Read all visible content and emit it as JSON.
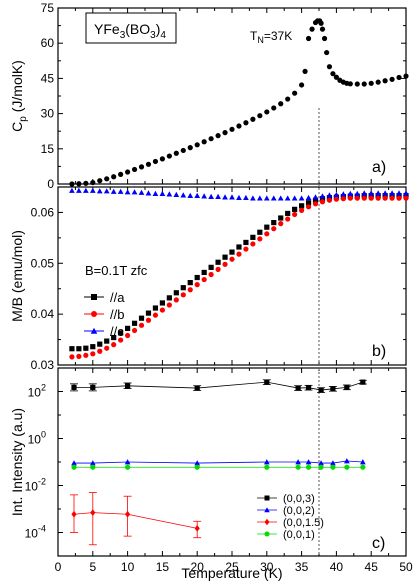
{
  "figure": {
    "xlabel": "Temperature (K)",
    "x_ticks": [
      "0",
      "5",
      "10",
      "15",
      "20",
      "25",
      "30",
      "35",
      "40",
      "45",
      "50"
    ],
    "xlim": [
      0,
      50
    ],
    "neel_line_x": 37.5
  },
  "chart_data": [
    {
      "type": "scatter",
      "panel_label": "a)",
      "ylabel": "Cp (J/molK)",
      "ylabel_main": "C",
      "ylabel_sub": "p",
      "ylabel_rest": " (J/molK)",
      "ylim": [
        0,
        75
      ],
      "y_ticks": [
        0,
        15,
        30,
        45,
        60,
        75
      ],
      "y_tick_labels": [
        "0",
        "15",
        "30",
        "45",
        "60",
        "75"
      ],
      "compound_box": {
        "main": "YFe",
        "sub1": "3",
        "mid": "(BO",
        "sub2": "3",
        "end": ")",
        "sub3": "4"
      },
      "annotation": {
        "main": "T",
        "sub": "N",
        "rest": "=37K"
      },
      "series": [
        {
          "color": "#000000",
          "marker": "circle",
          "x": [
            2.0,
            3.0,
            4.0,
            5.0,
            6.0,
            7.0,
            8.0,
            9.0,
            10.0,
            11.0,
            12.0,
            13.0,
            14.0,
            15.0,
            16.0,
            17.0,
            18.0,
            19.0,
            20.0,
            21.0,
            22.0,
            23.0,
            24.0,
            25.0,
            26.0,
            27.0,
            28.0,
            29.0,
            30.0,
            31.0,
            32.0,
            33.0,
            34.0,
            35.0,
            35.5,
            36.0,
            36.5,
            37.0,
            37.3,
            37.6,
            37.8,
            38.0,
            38.3,
            38.6,
            39.0,
            39.5,
            40.0,
            40.5,
            41.0,
            41.5,
            42.0,
            43.0,
            44.0,
            45.0,
            46.0,
            47.0,
            48.0,
            49.0,
            50.0
          ],
          "y": [
            0.0,
            0.1,
            0.3,
            0.6,
            1.4,
            2.2,
            3.1,
            4.1,
            5.1,
            6.2,
            7.3,
            8.4,
            9.6,
            10.7,
            11.9,
            13.1,
            14.3,
            15.5,
            16.7,
            18.0,
            19.3,
            20.6,
            21.9,
            23.3,
            24.7,
            26.1,
            27.6,
            29.1,
            30.7,
            32.4,
            34.2,
            36.2,
            38.7,
            42.2,
            48.0,
            62.0,
            66.0,
            68.8,
            69.5,
            69.5,
            68.5,
            66.0,
            62.0,
            56.0,
            50.0,
            47.0,
            45.5,
            44.2,
            43.4,
            42.9,
            42.7,
            42.6,
            42.6,
            42.9,
            43.4,
            44.0,
            44.6,
            45.4,
            46.0
          ]
        }
      ]
    },
    {
      "type": "scatter",
      "panel_label": "b)",
      "ylabel": "M/B (emu/mol)",
      "ylim": [
        0.03,
        0.065
      ],
      "y_ticks": [
        0.03,
        0.04,
        0.05,
        0.06
      ],
      "y_tick_labels": [
        "0.03",
        "0.04",
        "0.05",
        "0.06"
      ],
      "annotation": "B=0.1T zfc",
      "series": [
        {
          "name": "//a",
          "color": "#000000",
          "marker": "square",
          "x": [
            2,
            3,
            4,
            5,
            6,
            7,
            8,
            9,
            10,
            11,
            12,
            13,
            14,
            15,
            16,
            17,
            18,
            19,
            20,
            21,
            22,
            23,
            24,
            25,
            26,
            27,
            28,
            29,
            30,
            31,
            32,
            33,
            34,
            35,
            36,
            37,
            38,
            39,
            40,
            41,
            42,
            43,
            44,
            45,
            46,
            47,
            48,
            49,
            50
          ],
          "y": [
            0.0332,
            0.0332,
            0.0333,
            0.0336,
            0.0341,
            0.0347,
            0.0354,
            0.0363,
            0.0372,
            0.0382,
            0.0392,
            0.0402,
            0.0412,
            0.0422,
            0.0432,
            0.0442,
            0.0452,
            0.0462,
            0.0472,
            0.0482,
            0.0492,
            0.0502,
            0.0512,
            0.0522,
            0.0532,
            0.0541,
            0.0551,
            0.0561,
            0.0571,
            0.058,
            0.0589,
            0.0598,
            0.0606,
            0.0613,
            0.0619,
            0.0624,
            0.0627,
            0.0629,
            0.063,
            0.0631,
            0.0632,
            0.0632,
            0.0633,
            0.0633,
            0.0633,
            0.0633,
            0.0633,
            0.0633,
            0.0633
          ]
        },
        {
          "name": "//b",
          "color": "#ff0000",
          "marker": "circle",
          "x": [
            2,
            3,
            4,
            5,
            6,
            7,
            8,
            9,
            10,
            11,
            12,
            13,
            14,
            15,
            16,
            17,
            18,
            19,
            20,
            21,
            22,
            23,
            24,
            25,
            26,
            27,
            28,
            29,
            30,
            31,
            32,
            33,
            34,
            35,
            36,
            37,
            38,
            39,
            40,
            41,
            42,
            43,
            44,
            45,
            46,
            47,
            48,
            49,
            50
          ],
          "y": [
            0.0316,
            0.0317,
            0.0319,
            0.0322,
            0.0327,
            0.0333,
            0.034,
            0.0349,
            0.0358,
            0.0368,
            0.0378,
            0.0388,
            0.0398,
            0.0408,
            0.0418,
            0.0428,
            0.0438,
            0.0448,
            0.0458,
            0.0468,
            0.0478,
            0.0488,
            0.0498,
            0.0508,
            0.0518,
            0.0528,
            0.0538,
            0.0548,
            0.0558,
            0.0568,
            0.0578,
            0.0587,
            0.0596,
            0.0604,
            0.0611,
            0.0617,
            0.0621,
            0.0624,
            0.0626,
            0.0627,
            0.0628,
            0.0628,
            0.0628,
            0.0628,
            0.0628,
            0.0628,
            0.0628,
            0.0628,
            0.0628
          ]
        },
        {
          "name": "//c",
          "color": "#0000ff",
          "marker": "triangle",
          "x": [
            2,
            3,
            4,
            5,
            6,
            7,
            8,
            9,
            10,
            11,
            12,
            13,
            14,
            15,
            16,
            17,
            18,
            19,
            20,
            21,
            22,
            23,
            24,
            25,
            26,
            27,
            28,
            29,
            30,
            31,
            32,
            33,
            34,
            35,
            36,
            37,
            38,
            39,
            40,
            41,
            42,
            43,
            44,
            45,
            46,
            47,
            48,
            49,
            50
          ],
          "y": [
            0.0643,
            0.0643,
            0.0643,
            0.0643,
            0.0642,
            0.0642,
            0.0641,
            0.0641,
            0.064,
            0.064,
            0.0639,
            0.0638,
            0.0637,
            0.0637,
            0.0636,
            0.0635,
            0.0634,
            0.0633,
            0.0633,
            0.0632,
            0.0631,
            0.0631,
            0.063,
            0.063,
            0.0629,
            0.0629,
            0.0628,
            0.0628,
            0.0628,
            0.0628,
            0.0628,
            0.0628,
            0.0628,
            0.0628,
            0.0629,
            0.063,
            0.0632,
            0.0634,
            0.0635,
            0.0636,
            0.0637,
            0.0637,
            0.0638,
            0.0638,
            0.0638,
            0.0638,
            0.0638,
            0.0638,
            0.0638
          ]
        }
      ]
    },
    {
      "type": "line",
      "panel_label": "c)",
      "ylabel": "Int. Intensity (a.u)",
      "yscale": "log",
      "ylim": [
        1e-05,
        1000
      ],
      "y_ticks": [
        0.0001,
        0.01,
        1,
        100
      ],
      "y_tick_labels": [
        {
          "base": "10",
          "exp": "-4"
        },
        {
          "base": "10",
          "exp": "-2"
        },
        {
          "base": "10",
          "exp": "0"
        },
        {
          "base": "10",
          "exp": "2"
        }
      ],
      "series": [
        {
          "name": "(0,0,3)",
          "color": "#000000",
          "marker": "square",
          "x": [
            2.3,
            5,
            10,
            20,
            30,
            34.5,
            36,
            37.8,
            39.5,
            41.5,
            43.8
          ],
          "y": [
            150,
            150,
            175,
            140,
            250,
            140,
            145,
            115,
            130,
            150,
            250
          ],
          "yerr": [
            0.15,
            0.15,
            0.12,
            0.1,
            0.1,
            0.1,
            0.1,
            0.1,
            0.1,
            0.1,
            0.08
          ]
        },
        {
          "name": "(0,0,2)",
          "color": "#0000ff",
          "marker": "triangle",
          "x": [
            2.3,
            5,
            10,
            20,
            30,
            34.5,
            36,
            37.8,
            39.5,
            41.5,
            43.8
          ],
          "y": [
            0.09,
            0.09,
            0.1,
            0.09,
            0.1,
            0.1,
            0.1,
            0.09,
            0.09,
            0.11,
            0.1
          ]
        },
        {
          "name": "(0,0,1.5)",
          "color": "#ff0000",
          "marker": "diamond",
          "x": [
            2.3,
            5,
            10,
            20
          ],
          "y": [
            0.0006,
            0.0007,
            0.0006,
            0.00015
          ],
          "yerr_low": [
            0.0001,
            3e-05,
            7e-05,
            6e-05
          ],
          "yerr_high": [
            0.004,
            0.005,
            0.0035,
            0.0003
          ]
        },
        {
          "name": "(0,0,1)",
          "color": "#00dd00",
          "marker": "circle",
          "x": [
            2.3,
            5,
            10,
            20,
            30,
            34.5,
            36,
            37.8,
            39.5,
            41.5,
            43.8
          ],
          "y": [
            0.06,
            0.06,
            0.06,
            0.06,
            0.06,
            0.06,
            0.06,
            0.06,
            0.06,
            0.06,
            0.06
          ]
        }
      ]
    }
  ]
}
